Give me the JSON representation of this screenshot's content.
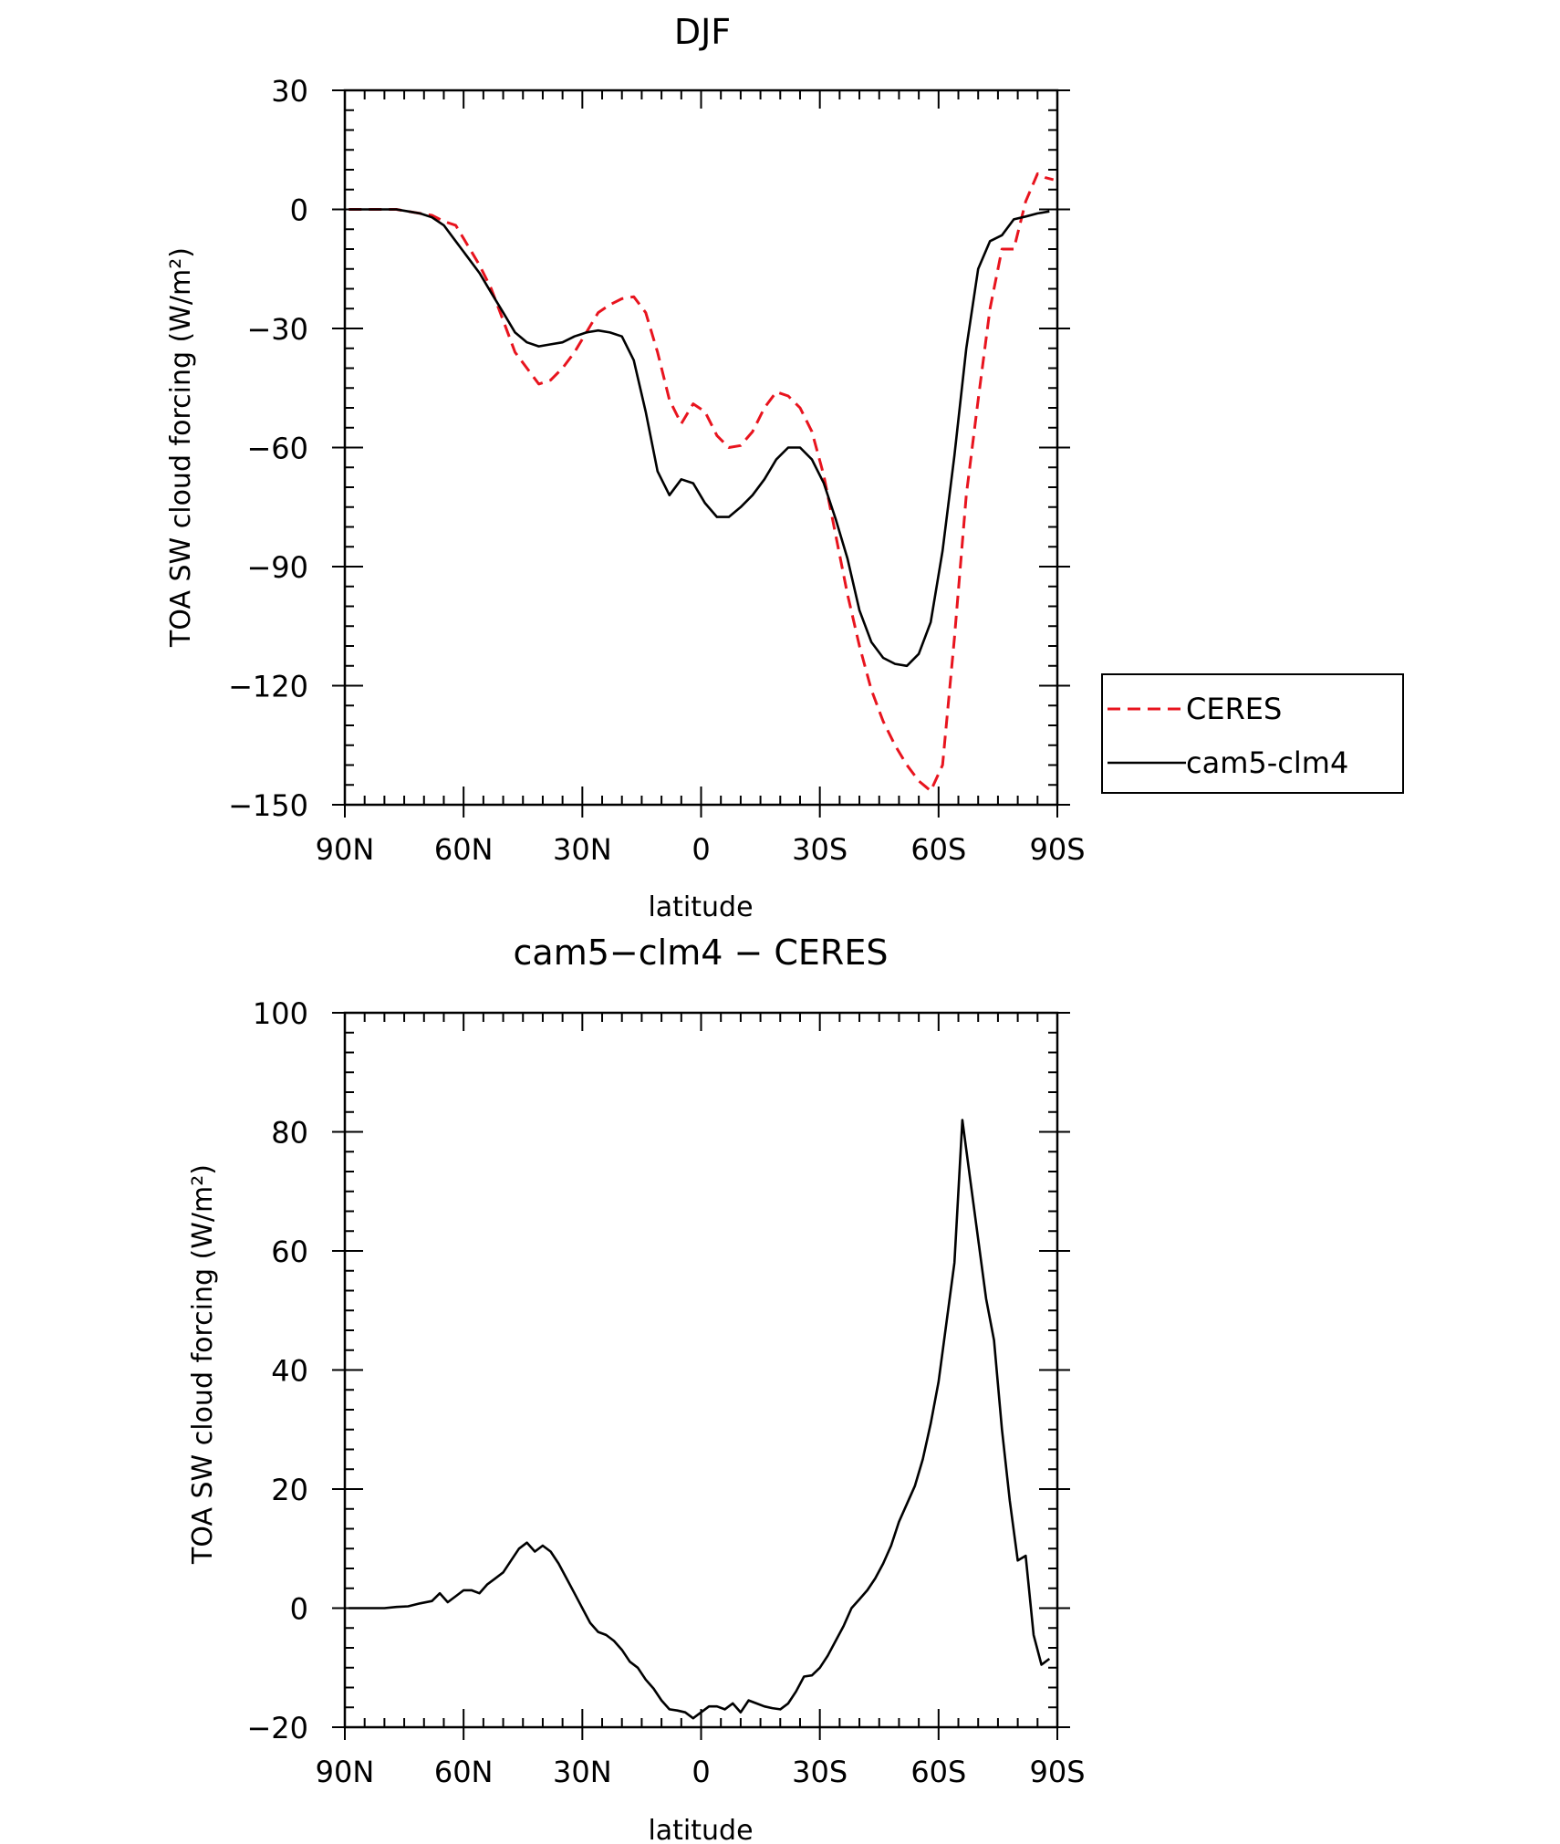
{
  "chart_data": [
    {
      "type": "line",
      "title": "DJF",
      "xlabel": "latitude",
      "ylabel": "TOA SW cloud forcing (W/m²)",
      "xlim": [
        90,
        -90
      ],
      "ylim": [
        -150,
        30
      ],
      "x_direction": "north-to-south",
      "xticks": [
        90,
        60,
        30,
        0,
        -30,
        -60,
        -90
      ],
      "xtick_labels": [
        "90N",
        "60N",
        "30N",
        "0",
        "30S",
        "60S",
        "90S"
      ],
      "yticks": [
        30,
        0,
        -30,
        -60,
        -90,
        -120,
        -150
      ],
      "ytick_labels": [
        "30",
        "0",
        "−30",
        "−60",
        "−90",
        "−120",
        "−150"
      ],
      "grid": false,
      "legend_position": "right",
      "series": [
        {
          "name": "CERES",
          "color": "#e8141e",
          "style": "dashed",
          "x": [
            89,
            86,
            83,
            80,
            77,
            74,
            71,
            68,
            65,
            62,
            59,
            56,
            53,
            50,
            47,
            44,
            41,
            38,
            35,
            32,
            29,
            26,
            23,
            20,
            17,
            14,
            11,
            8,
            5,
            2,
            -1,
            -4,
            -7,
            -10,
            -13,
            -16,
            -19,
            -22,
            -25,
            -28,
            -31,
            -34,
            -37,
            -40,
            -43,
            -46,
            -49,
            -52,
            -55,
            -58,
            -61,
            -64,
            -67,
            -70,
            -73,
            -76,
            -79,
            -82,
            -85,
            -87,
            -89
          ],
          "y": [
            0,
            0,
            0,
            0,
            0,
            -0.5,
            -1,
            -1.5,
            -3,
            -4,
            -9,
            -14,
            -20,
            -28,
            -36,
            -40,
            -44,
            -43,
            -40,
            -36,
            -31,
            -26,
            -24,
            -22.5,
            -22,
            -26,
            -36,
            -48,
            -54,
            -49,
            -51,
            -57,
            -60,
            -59.5,
            -56,
            -50,
            -46,
            -47,
            -50,
            -56,
            -67,
            -82,
            -97,
            -110,
            -121,
            -129,
            -135,
            -140,
            -144,
            -146.5,
            -140,
            -108,
            -72,
            -48,
            -25,
            -10,
            -10,
            2,
            9,
            8,
            7.5
          ]
        },
        {
          "name": "cam5-clm4",
          "color": "#000000",
          "style": "solid",
          "x": [
            89,
            86,
            83,
            80,
            77,
            74,
            71,
            68,
            65,
            62,
            59,
            56,
            53,
            50,
            47,
            44,
            41,
            38,
            35,
            32,
            29,
            26,
            23,
            20,
            17,
            14,
            11,
            8,
            5,
            2,
            -1,
            -4,
            -7,
            -10,
            -13,
            -16,
            -19,
            -22,
            -25,
            -28,
            -31,
            -34,
            -37,
            -40,
            -43,
            -46,
            -49,
            -52,
            -55,
            -58,
            -61,
            -64,
            -67,
            -70,
            -73,
            -76,
            -79,
            -82,
            -85,
            -88
          ],
          "y": [
            0,
            0,
            0,
            0,
            0,
            -0.5,
            -1,
            -2,
            -4,
            -8,
            -12,
            -16,
            -21,
            -26,
            -31,
            -33.5,
            -34.5,
            -34,
            -33.5,
            -32,
            -31,
            -30.5,
            -31,
            -32,
            -38,
            -51,
            -66,
            -72,
            -68,
            -69,
            -74,
            -77.5,
            -77.5,
            -75,
            -72,
            -68,
            -63,
            -60,
            -60,
            -63,
            -69,
            -78,
            -88,
            -101,
            -109,
            -113,
            -114.5,
            -115,
            -112,
            -104,
            -86,
            -62,
            -35,
            -15,
            -8,
            -6.5,
            -2.5,
            -1.8,
            -1,
            -0.5
          ]
        }
      ]
    },
    {
      "type": "line",
      "title": "cam5−clm4 − CERES",
      "xlabel": "latitude",
      "ylabel": "TOA SW cloud forcing (W/m²)",
      "xlim": [
        90,
        -90
      ],
      "ylim": [
        -20,
        100
      ],
      "x_direction": "north-to-south",
      "xticks": [
        90,
        60,
        30,
        0,
        -30,
        -60,
        -90
      ],
      "xtick_labels": [
        "90N",
        "60N",
        "30N",
        "0",
        "30S",
        "60S",
        "90S"
      ],
      "yticks": [
        100,
        80,
        60,
        40,
        20,
        0,
        -20
      ],
      "ytick_labels": [
        "100",
        "80",
        "60",
        "40",
        "20",
        "0",
        "−20"
      ],
      "grid": false,
      "series": [
        {
          "color": "#000000",
          "style": "solid",
          "x": [
            89,
            86,
            83,
            80,
            77,
            74,
            71,
            68,
            66,
            64,
            62,
            60,
            58,
            56,
            54,
            52,
            50,
            48,
            46,
            44,
            42,
            40,
            38,
            36,
            34,
            32,
            30,
            28,
            26,
            24,
            22,
            20,
            18,
            16,
            14,
            12,
            10,
            8,
            6,
            4,
            2,
            0,
            -2,
            -4,
            -6,
            -8,
            -10,
            -12,
            -14,
            -16,
            -18,
            -20,
            -22,
            -24,
            -26,
            -28,
            -30,
            -32,
            -34,
            -36,
            -38,
            -40,
            -42,
            -44,
            -46,
            -48,
            -50,
            -52,
            -54,
            -56,
            -58,
            -60,
            -62,
            -64,
            -66,
            -68,
            -70,
            -72,
            -74,
            -76,
            -78,
            -80,
            -82,
            -84,
            -86,
            -88
          ],
          "y": [
            0,
            0,
            0,
            0,
            0.2,
            0.3,
            0.8,
            1.2,
            2.5,
            1,
            2,
            3,
            3,
            2.5,
            4,
            5,
            6,
            8,
            10,
            11,
            9.5,
            10.5,
            9.5,
            7.5,
            5,
            2.5,
            0,
            -2.5,
            -4,
            -4.5,
            -5.5,
            -7,
            -9,
            -10,
            -12,
            -13.5,
            -15.5,
            -17,
            -17.2,
            -17.5,
            -18.5,
            -17.5,
            -16.5,
            -16.5,
            -17,
            -16,
            -17.5,
            -15.5,
            -16,
            -16.5,
            -16.8,
            -17,
            -16,
            -14,
            -11.5,
            -11.3,
            -10,
            -8,
            -5.5,
            -3,
            0,
            1.5,
            3,
            5,
            7.5,
            10.5,
            14.5,
            17.5,
            20.5,
            25,
            31,
            38,
            48,
            58,
            82,
            72,
            62,
            52,
            45,
            30,
            18,
            8,
            8.8,
            -4.5,
            -9.5,
            -8.5
          ]
        }
      ]
    }
  ]
}
